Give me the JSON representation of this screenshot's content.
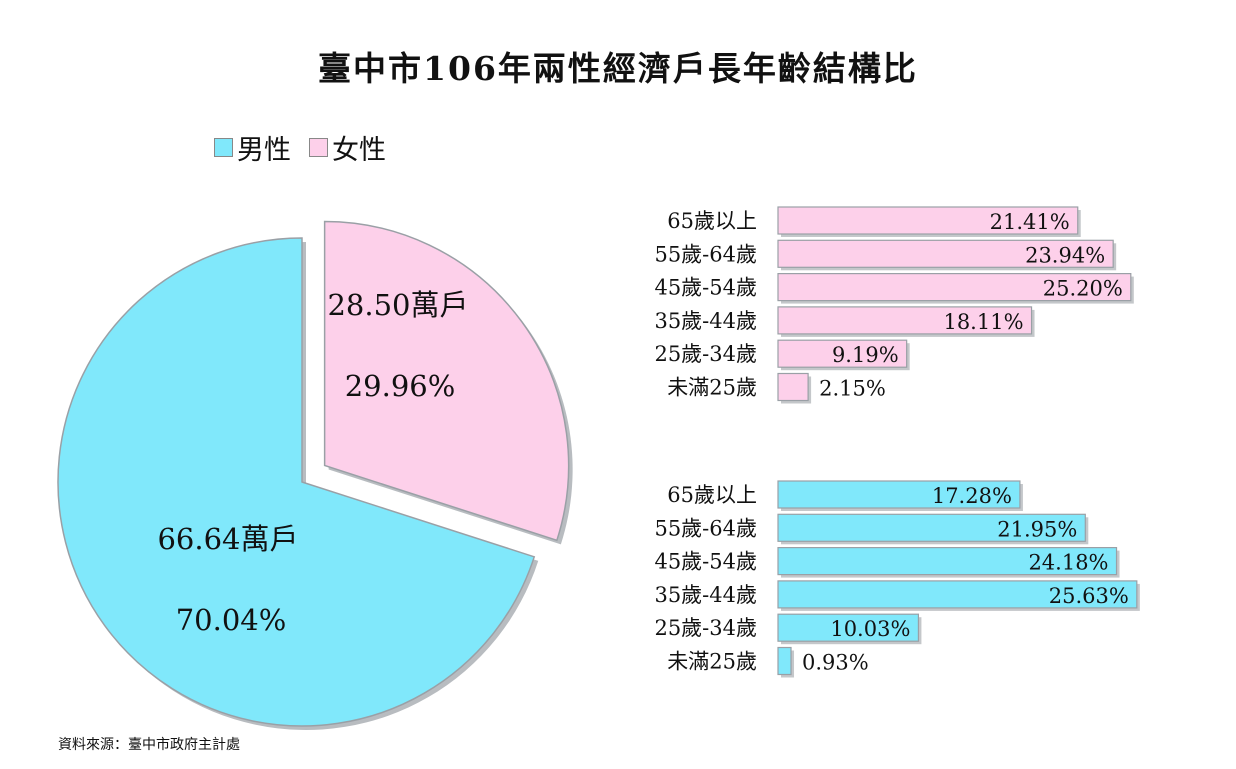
{
  "title": "臺中市106年兩性經濟戶長年齡結構比",
  "legend": {
    "male_label": "男性",
    "female_label": "女性"
  },
  "source": "資料來源：臺中市政府主計處",
  "colors": {
    "male": "#80e8fb",
    "female": "#fdd0ea",
    "edge": "#9aa0a6"
  },
  "chart_data": [
    {
      "type": "pie",
      "slices": [
        {
          "name": "男性",
          "households": "66.64萬戶",
          "percent_label": "70.04%",
          "value": 70.04
        },
        {
          "name": "女性",
          "households": "28.50萬戶",
          "percent_label": "29.96%",
          "value": 29.96
        }
      ]
    },
    {
      "type": "bar",
      "series_name": "女性",
      "categories": [
        "65歲以上",
        "55歲-64歲",
        "45歲-54歲",
        "35歲-44歲",
        "25歲-34歲",
        "未滿25歲"
      ],
      "values": [
        21.41,
        23.94,
        25.2,
        18.11,
        9.19,
        2.15
      ],
      "labels": [
        "21.41%",
        "23.94%",
        "25.20%",
        "18.11%",
        "9.19%",
        "2.15%"
      ]
    },
    {
      "type": "bar",
      "series_name": "男性",
      "categories": [
        "65歲以上",
        "55歲-64歲",
        "45歲-54歲",
        "35歲-44歲",
        "25歲-34歲",
        "未滿25歲"
      ],
      "values": [
        17.28,
        21.95,
        24.18,
        25.63,
        10.03,
        0.93
      ],
      "labels": [
        "17.28%",
        "21.95%",
        "24.18%",
        "25.63%",
        "10.03%",
        "0.93%"
      ]
    }
  ]
}
